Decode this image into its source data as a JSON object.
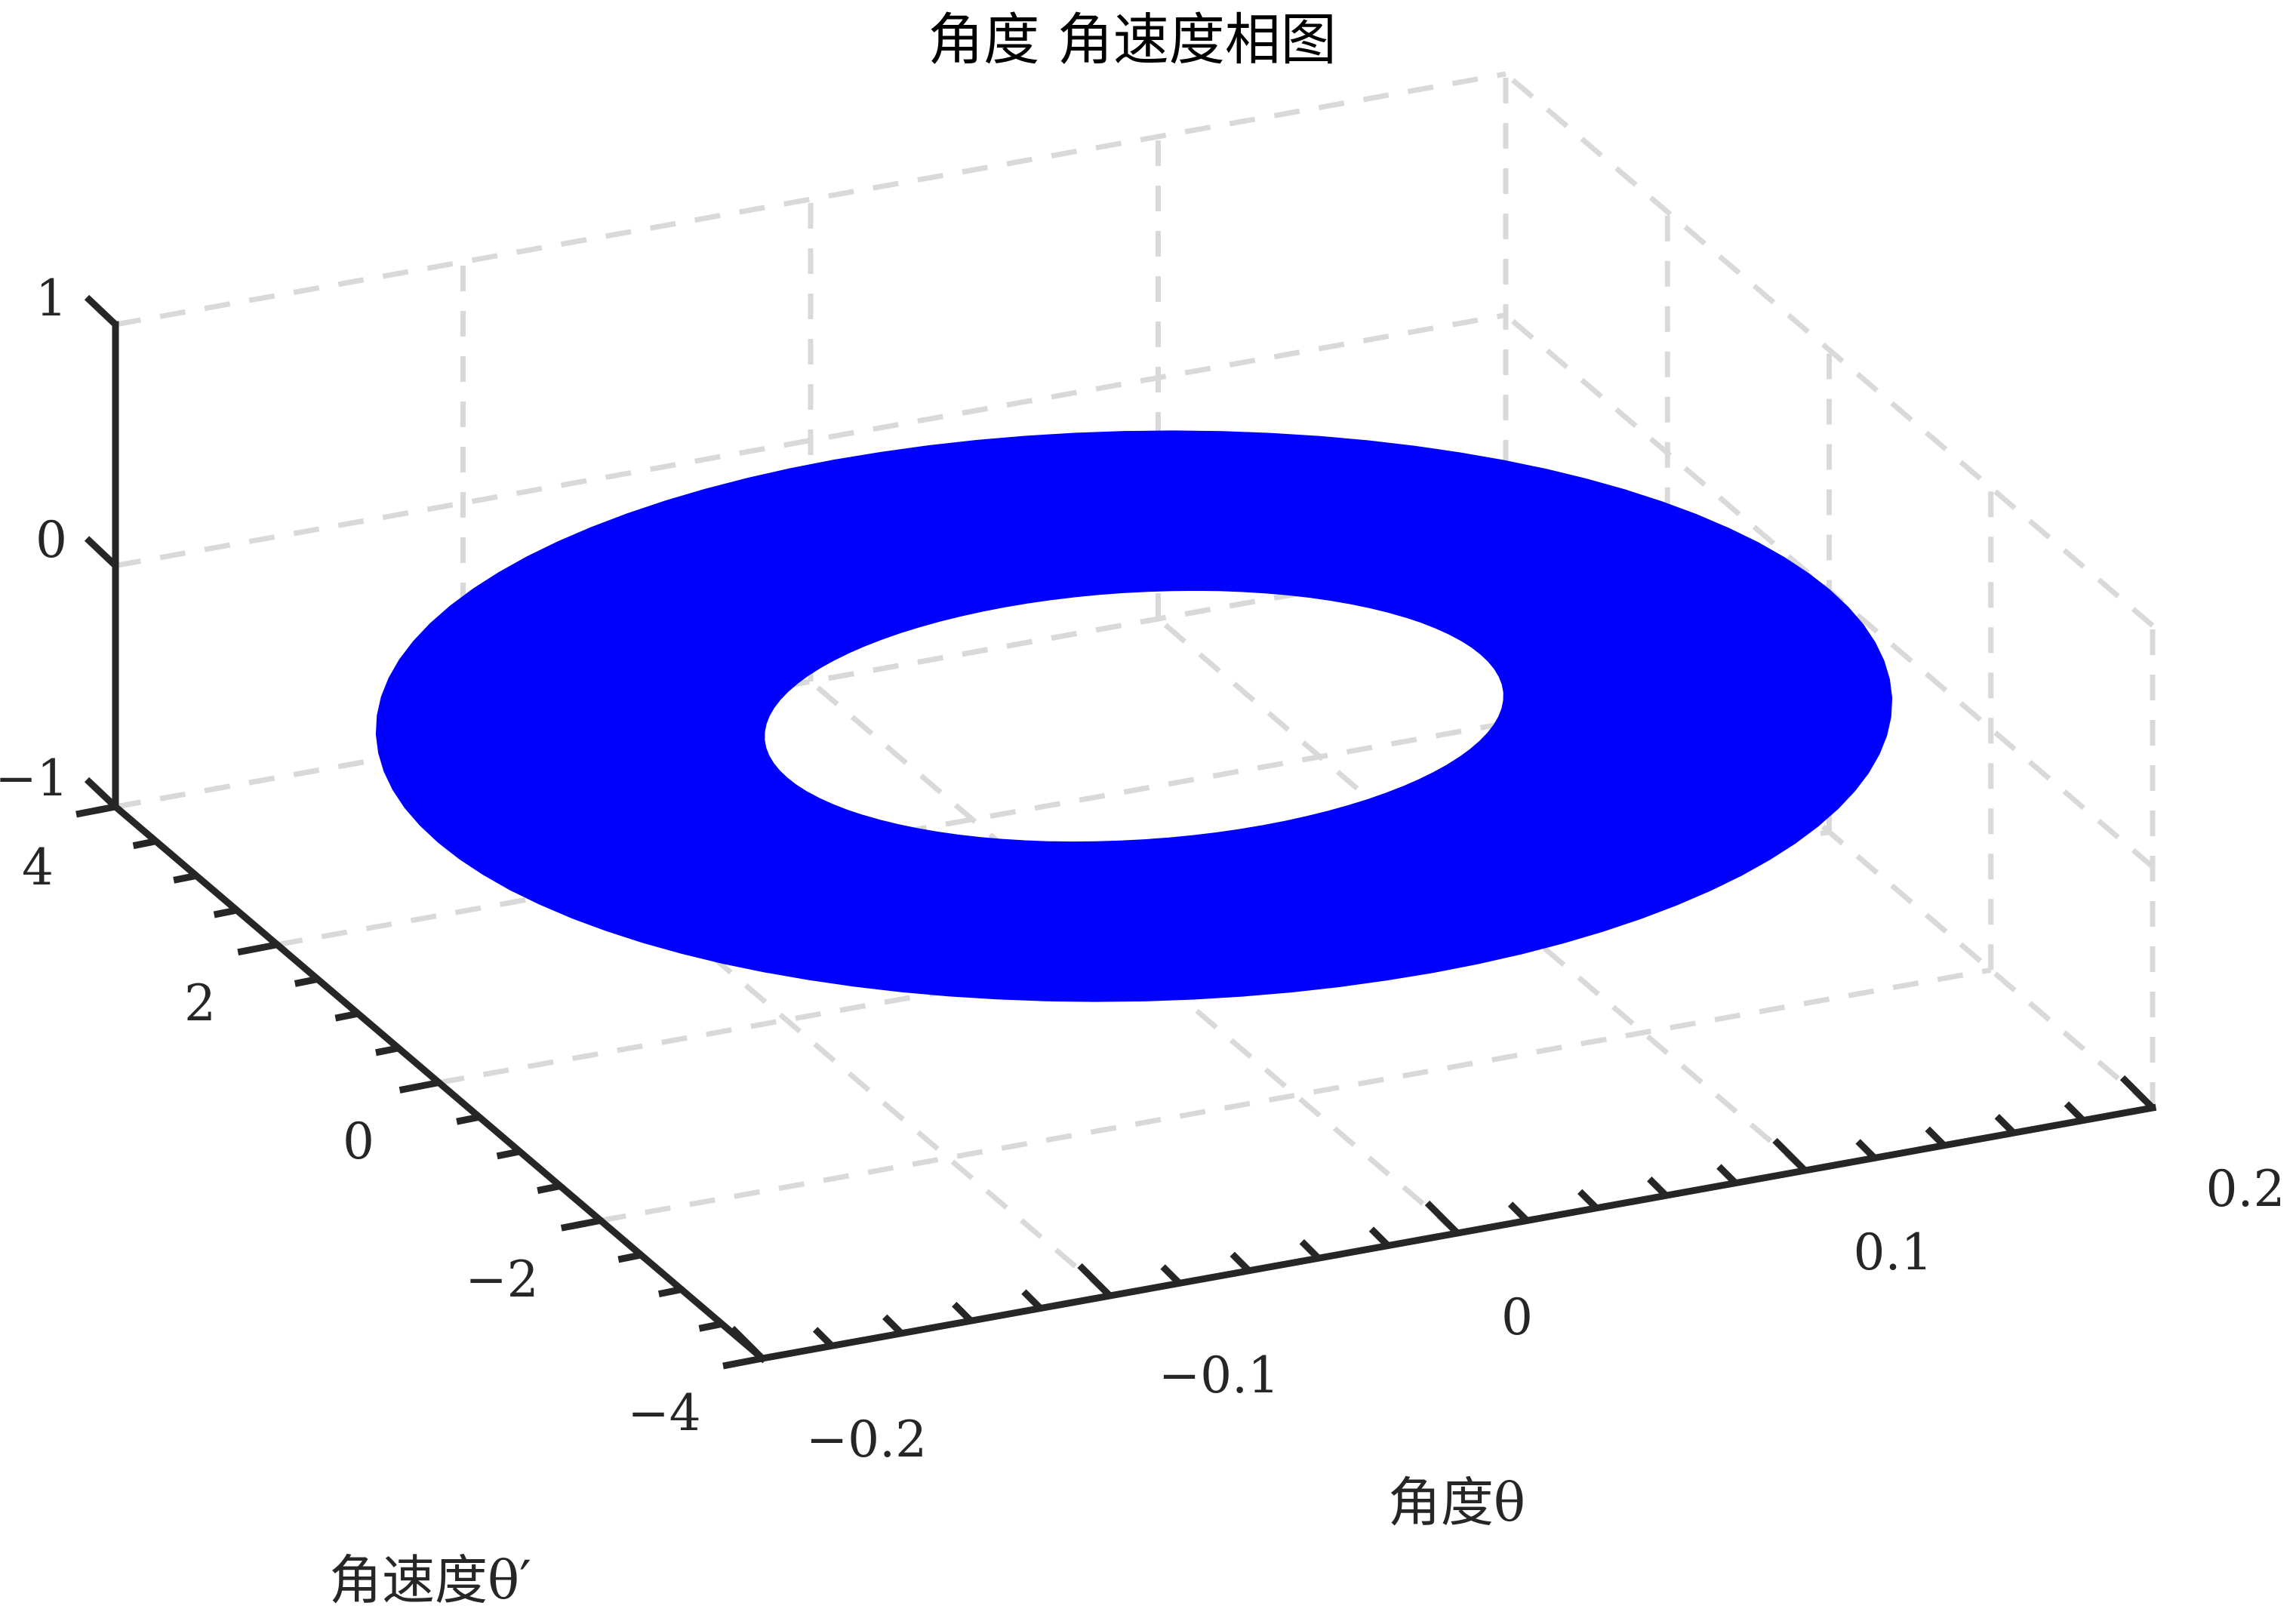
{
  "chart_data": {
    "type": "surface",
    "title": "角度 角速度相图",
    "xlabel": "角度θ",
    "ylabel": "角速度θ′",
    "xlim": [
      -0.2,
      0.2
    ],
    "ylim": [
      -4,
      4
    ],
    "zlim": [
      -1,
      1
    ],
    "x_ticks": [
      "−0.2",
      "−0.1",
      "0",
      "0.1",
      "0.2"
    ],
    "y_ticks": [
      "−4",
      "−2",
      "0",
      "2",
      "4"
    ],
    "z_ticks": [
      "−1",
      "0",
      "1"
    ],
    "grid": true,
    "series": [
      {
        "shape": "annulus",
        "z": 0,
        "color": "#0000ff",
        "outer_semi_axes": {
          "theta": 0.2,
          "omega": 3.7
        },
        "inner_semi_axes": {
          "theta": 0.1,
          "omega": 1.6
        }
      }
    ]
  }
}
